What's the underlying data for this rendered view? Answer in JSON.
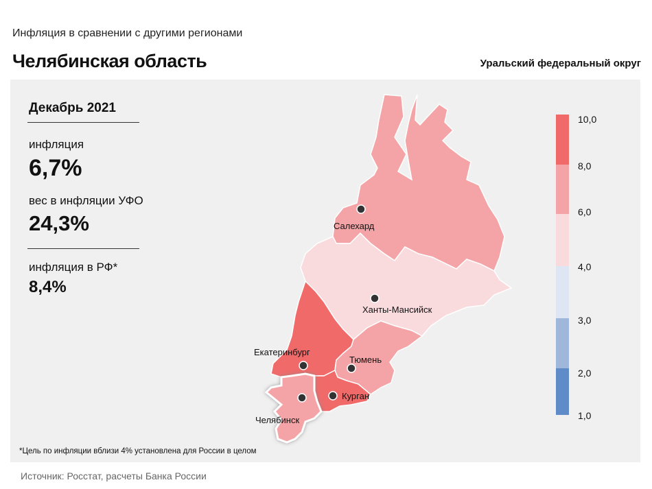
{
  "header": {
    "subtitle": "Инфляция  в сравнении  с другими  регионами",
    "title": "Челябинская область",
    "district": "Уральский федеральный округ"
  },
  "stats": {
    "period": "Декабрь 2021",
    "inflation_label": "инфляция",
    "inflation_value": "6,7%",
    "weight_label": "вес в инфляции  УФО",
    "weight_value": "24,3%",
    "rf_label": "инфляция  в РФ*",
    "rf_value": "8,4%"
  },
  "footnote": "*Цель по инфляции вблизи 4% установлена для России в целом",
  "source": "Источник: Росстат, расчеты Банка России",
  "legend": {
    "ticks": [
      "10,0",
      "8,0",
      "6,0",
      "4,0",
      "3,0",
      "2,0",
      "1,0"
    ],
    "colors": [
      "#f06a6a",
      "#f4a4a6",
      "#f9dadd",
      "#dfe6f3",
      "#9eb7da",
      "#5f8cc9"
    ]
  },
  "map": {
    "highlighted_region": "Челябинская область",
    "colors": {
      "yamal": "#f4a4a6",
      "khmao": "#f9dadd",
      "sverdlovsk": "#f06a6a",
      "tyumen": "#f4a4a6",
      "kurgan": "#f06a6a",
      "chelyabinsk": "#f4a4a6"
    },
    "cities": [
      "Салехард",
      "Ханты-Мансийск",
      "Екатеринбург",
      "Тюмень",
      "Курган",
      "Челябинск"
    ]
  }
}
